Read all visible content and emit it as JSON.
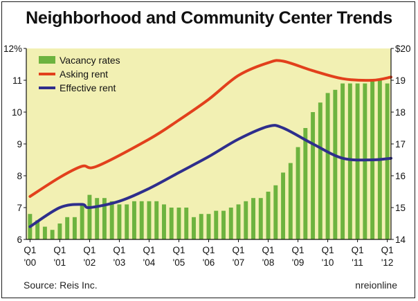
{
  "title": "Neighborhood and Community Center Trends",
  "source": "Source: Reis Inc.",
  "credit": "nreionline",
  "chart_data": {
    "type": "bar+line",
    "bg_color": "#f2f0b3",
    "x_ticks": [
      {
        "q": "Q1",
        "y": "'00",
        "i": 0
      },
      {
        "q": "Q1",
        "y": "'01",
        "i": 4
      },
      {
        "q": "Q1",
        "y": "'02",
        "i": 8
      },
      {
        "q": "Q1",
        "y": "'03",
        "i": 12
      },
      {
        "q": "Q1",
        "y": "'04",
        "i": 16
      },
      {
        "q": "Q1",
        "y": "'05",
        "i": 20
      },
      {
        "q": "Q1",
        "y": "'06",
        "i": 24
      },
      {
        "q": "Q1",
        "y": "'07",
        "i": 28
      },
      {
        "q": "Q1",
        "y": "'08",
        "i": 32
      },
      {
        "q": "Q1",
        "y": "'09",
        "i": 36
      },
      {
        "q": "Q1",
        "y": "'10",
        "i": 40
      },
      {
        "q": "Q1",
        "y": "'11",
        "i": 44
      },
      {
        "q": "Q1",
        "y": "'12",
        "i": 48
      }
    ],
    "y_left": {
      "min": 6,
      "max": 12,
      "ticks": [
        "6",
        "7",
        "8",
        "9",
        "10",
        "11",
        "12%"
      ]
    },
    "y_right": {
      "min": 14,
      "max": 20,
      "ticks": [
        "14",
        "15",
        "16",
        "17",
        "18",
        "19",
        "$20"
      ]
    },
    "series": [
      {
        "name": "Vacancy rates",
        "kind": "bar",
        "axis": "left",
        "color": "#6db33f",
        "values": [
          6.8,
          6.6,
          6.4,
          6.3,
          6.5,
          6.7,
          6.7,
          7.1,
          7.4,
          7.3,
          7.3,
          7.2,
          7.1,
          7.1,
          7.2,
          7.2,
          7.2,
          7.2,
          7.1,
          7.0,
          7.0,
          7.0,
          6.7,
          6.8,
          6.8,
          6.9,
          6.9,
          7.0,
          7.1,
          7.2,
          7.3,
          7.3,
          7.5,
          7.7,
          8.1,
          8.4,
          8.9,
          9.5,
          10.0,
          10.3,
          10.6,
          10.7,
          10.9,
          10.9,
          10.9,
          10.9,
          11.0,
          11.0,
          10.9
        ]
      },
      {
        "name": "Asking rent",
        "kind": "line",
        "axis": "right",
        "color": "#e2401c",
        "x": [
          0,
          4,
          7,
          9,
          16,
          20,
          24,
          28,
          32,
          34,
          38,
          42,
          46,
          48.5
        ],
        "values": [
          15.35,
          15.95,
          16.3,
          16.3,
          17.15,
          17.75,
          18.4,
          19.15,
          19.55,
          19.6,
          19.3,
          19.05,
          19.0,
          19.1
        ]
      },
      {
        "name": "Effective rent",
        "kind": "line",
        "axis": "right",
        "color": "#2e2e8c",
        "x": [
          0,
          4,
          7,
          8,
          12,
          16,
          20,
          24,
          28,
          32,
          34,
          38,
          42,
          46,
          48.5
        ],
        "values": [
          14.4,
          15.0,
          15.1,
          15.0,
          15.2,
          15.6,
          16.1,
          16.6,
          17.15,
          17.55,
          17.5,
          17.0,
          16.55,
          16.5,
          16.55
        ]
      }
    ],
    "legend_position": "top-left"
  }
}
